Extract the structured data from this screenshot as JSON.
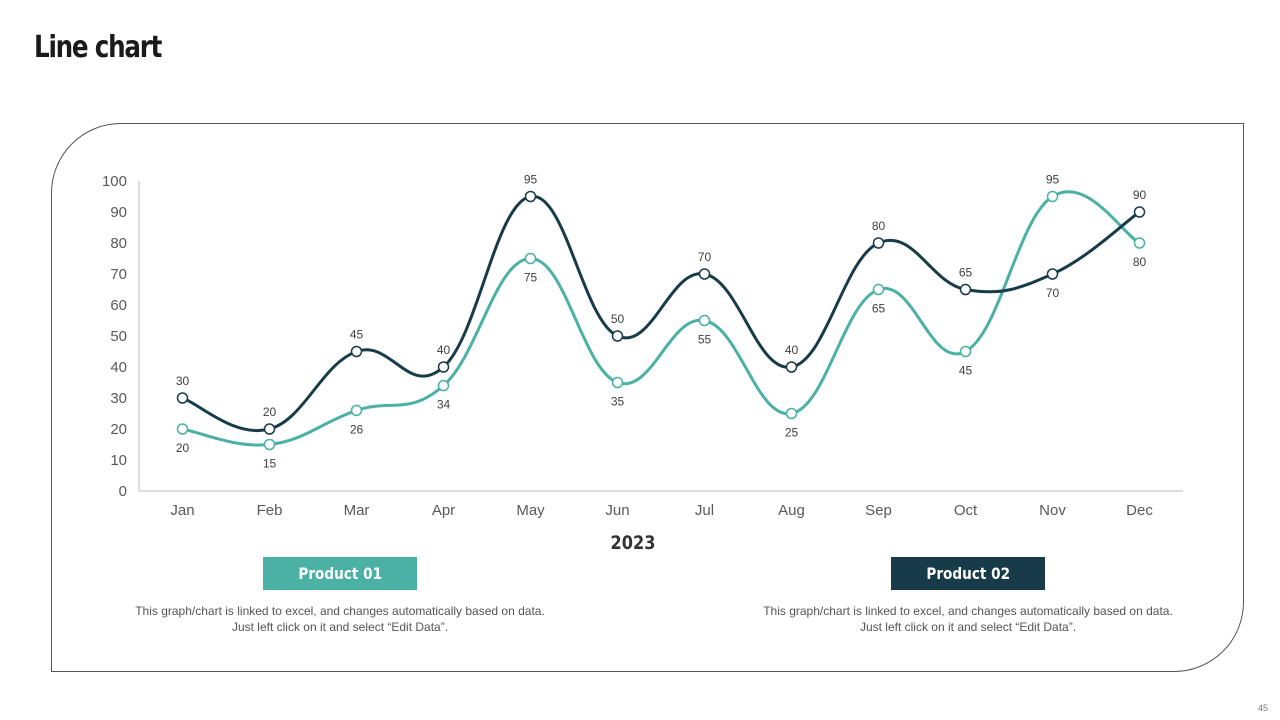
{
  "page": {
    "title": "Line chart",
    "page_number": "45"
  },
  "chart_data": {
    "type": "line",
    "title": "",
    "xlabel": "2023",
    "ylabel": "",
    "categories": [
      "Jan",
      "Feb",
      "Mar",
      "Apr",
      "May",
      "Jun",
      "Jul",
      "Aug",
      "Sep",
      "Oct",
      "Nov",
      "Dec"
    ],
    "ylim": [
      0,
      100
    ],
    "yticks": [
      0,
      10,
      20,
      30,
      40,
      50,
      60,
      70,
      80,
      90,
      100
    ],
    "grid": false,
    "series": [
      {
        "name": "Product 01",
        "color": "#4bb1a4",
        "values": [
          20,
          15,
          26,
          34,
          75,
          35,
          55,
          25,
          65,
          45,
          95,
          80
        ]
      },
      {
        "name": "Product 02",
        "color": "#183b4a",
        "values": [
          30,
          20,
          45,
          40,
          95,
          50,
          70,
          40,
          80,
          65,
          70,
          90
        ]
      }
    ]
  },
  "legend": {
    "product1": {
      "label": "Product 01",
      "note": "This graph/chart is linked to excel, and changes automatically based on data. Just left click on it and select “Edit Data”."
    },
    "product2": {
      "label": "Product 02",
      "note": "This graph/chart is linked to excel, and changes automatically based on data. Just left click on it and select “Edit Data”."
    }
  }
}
